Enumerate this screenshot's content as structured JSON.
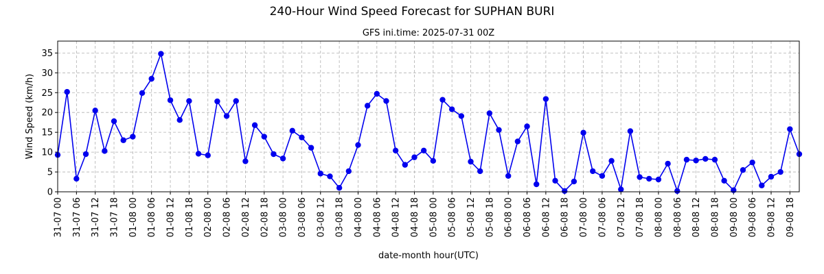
{
  "chart_data": {
    "type": "line",
    "title": "240-Hour Wind Speed Forecast for SUPHAN BURI",
    "subtitle": "GFS ini.time: 2025-07-31 00Z",
    "xlabel": "date-month hour(UTC)",
    "ylabel": "Wind Speed (km/h)",
    "ylim": [
      0,
      38
    ],
    "yticks": [
      0,
      5,
      10,
      15,
      20,
      25,
      30,
      35
    ],
    "grid": true,
    "line_color": "#0000ee",
    "x_tick_labels": [
      "31-07 00",
      "31-07 06",
      "31-07 12",
      "31-07 18",
      "01-08 00",
      "01-08 06",
      "01-08 12",
      "01-08 18",
      "02-08 00",
      "02-08 06",
      "02-08 12",
      "02-08 18",
      "03-08 00",
      "03-08 06",
      "03-08 12",
      "03-08 18",
      "04-08 00",
      "04-08 06",
      "04-08 12",
      "04-08 18",
      "05-08 00",
      "05-08 06",
      "05-08 12",
      "05-08 18",
      "06-08 00",
      "06-08 06",
      "06-08 12",
      "06-08 18",
      "07-08 00",
      "07-08 06",
      "07-08 12",
      "07-08 18",
      "08-08 00",
      "08-08 06",
      "08-08 12",
      "08-08 18",
      "09-08 00",
      "09-08 06",
      "09-08 12",
      "09-08 18"
    ],
    "series": [
      {
        "values": [
          9.3,
          25.2,
          3.3,
          9.5,
          20.5,
          10.3,
          17.8,
          13.0,
          13.9,
          24.9,
          28.5,
          34.8,
          23.1,
          18.1,
          22.9,
          9.6,
          9.2,
          22.8,
          19.1,
          22.9,
          7.7,
          16.8,
          13.9,
          9.5,
          8.4,
          15.4,
          13.7,
          11.1,
          4.6,
          3.9,
          1.0,
          5.2,
          11.8,
          21.7,
          24.7,
          22.9,
          10.4,
          6.8,
          8.7,
          10.4,
          7.8,
          23.2,
          20.8,
          19.1,
          7.6,
          5.2,
          19.8,
          15.6,
          4.0,
          12.7,
          16.5,
          1.9,
          23.4,
          2.8,
          0.2,
          2.6,
          14.9,
          5.2,
          4.0,
          7.8,
          0.6,
          15.3,
          3.7,
          3.3,
          3.1,
          7.1,
          0.2,
          8.1,
          7.9,
          8.3,
          8.1,
          2.8,
          0.4,
          5.5,
          7.4,
          1.6,
          3.8,
          5.0,
          15.8,
          9.5
        ]
      }
    ]
  }
}
